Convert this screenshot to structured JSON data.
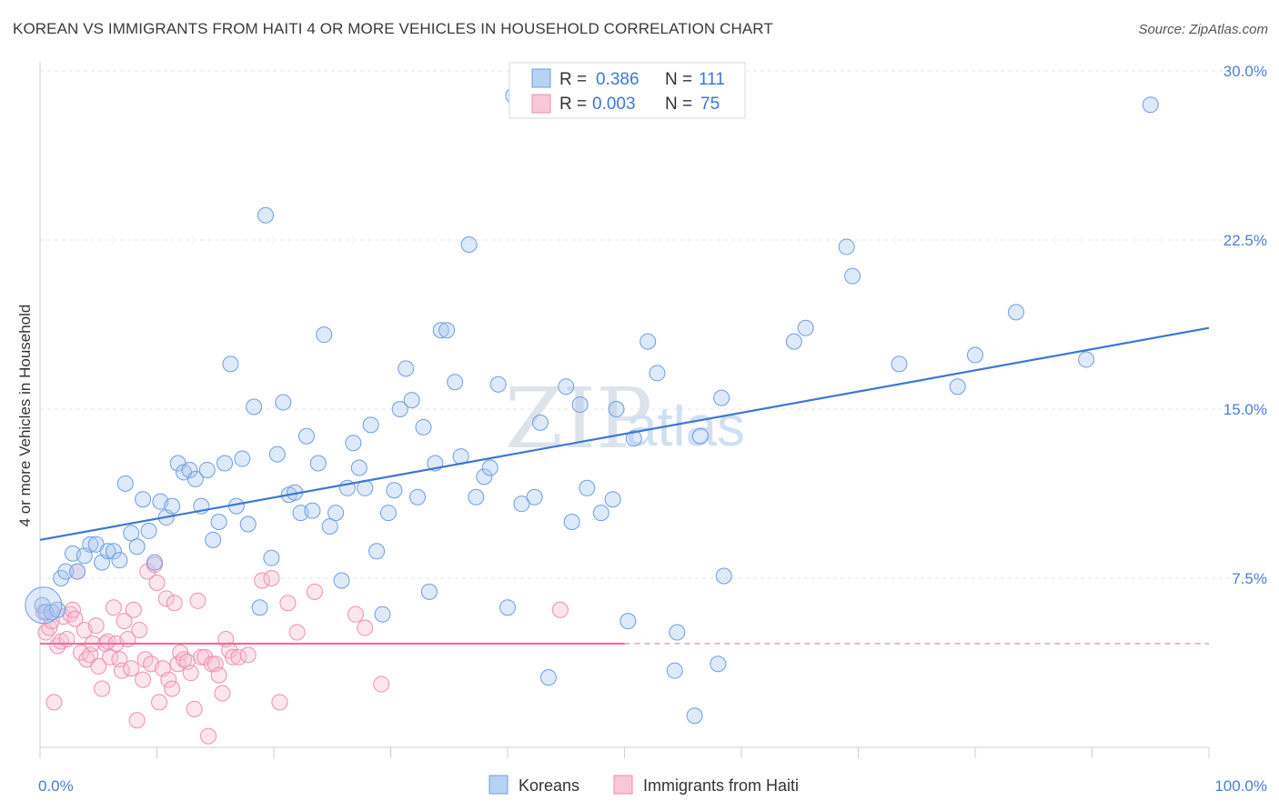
{
  "title": "KOREAN VS IMMIGRANTS FROM HAITI 4 OR MORE VEHICLES IN HOUSEHOLD CORRELATION CHART",
  "source": "Source: ZipAtlas.com",
  "watermark": {
    "zip": "ZIP",
    "atlas": "atlas"
  },
  "colors": {
    "koreans": "#4a86d8",
    "haiti": "#ec7aa0",
    "koreans_fill": "rgba(164,196,240,0.35)",
    "haiti_fill": "rgba(246,180,202,0.35)"
  },
  "legend": {
    "r_label": "R =",
    "n_label": "N =",
    "rows": [
      {
        "r": "0.386",
        "n": "111"
      },
      {
        "r": "0.003",
        "n": "75"
      }
    ]
  },
  "chart_data": {
    "type": "scatter",
    "title": "KOREAN VS IMMIGRANTS FROM HAITI 4 OR MORE VEHICLES IN HOUSEHOLD CORRELATION CHART",
    "xlabel": "",
    "ylabel": "4 or more Vehicles in Household",
    "xlim": [
      0,
      100
    ],
    "ylim": [
      0,
      30
    ],
    "x_tick_labels": [
      "0.0%",
      "100.0%"
    ],
    "y_ticks": [
      7.5,
      15.0,
      22.5,
      30.0
    ],
    "y_tick_labels": [
      "7.5%",
      "15.0%",
      "22.5%",
      "30.0%"
    ],
    "grid": true,
    "legend_position": "top-center",
    "series": [
      {
        "name": "Koreans",
        "trend": {
          "x": [
            0,
            100
          ],
          "y": [
            9.2,
            18.6
          ]
        },
        "points": [
          [
            0.2,
            6.3
          ],
          [
            0.5,
            6.0
          ],
          [
            1.0,
            6.0
          ],
          [
            1.5,
            6.1
          ],
          [
            1.8,
            7.5
          ],
          [
            2.2,
            7.8
          ],
          [
            2.8,
            8.6
          ],
          [
            3.2,
            7.8
          ],
          [
            3.8,
            8.5
          ],
          [
            4.3,
            9.0
          ],
          [
            4.8,
            9.0
          ],
          [
            5.3,
            8.2
          ],
          [
            5.8,
            8.7
          ],
          [
            6.3,
            8.7
          ],
          [
            6.8,
            8.3
          ],
          [
            7.3,
            11.7
          ],
          [
            7.8,
            9.5
          ],
          [
            8.3,
            8.9
          ],
          [
            8.8,
            11.0
          ],
          [
            9.3,
            9.6
          ],
          [
            9.8,
            8.2
          ],
          [
            10.3,
            10.9
          ],
          [
            10.8,
            10.2
          ],
          [
            11.3,
            10.7
          ],
          [
            11.8,
            12.6
          ],
          [
            12.3,
            12.2
          ],
          [
            12.8,
            12.3
          ],
          [
            13.3,
            11.9
          ],
          [
            13.8,
            10.7
          ],
          [
            14.3,
            12.3
          ],
          [
            14.8,
            9.2
          ],
          [
            15.3,
            10.0
          ],
          [
            15.8,
            12.6
          ],
          [
            16.3,
            17.0
          ],
          [
            16.8,
            10.7
          ],
          [
            17.3,
            12.8
          ],
          [
            17.8,
            9.9
          ],
          [
            18.3,
            15.1
          ],
          [
            18.8,
            6.2
          ],
          [
            19.3,
            23.6
          ],
          [
            19.8,
            8.4
          ],
          [
            20.3,
            13.0
          ],
          [
            20.8,
            15.3
          ],
          [
            21.3,
            11.2
          ],
          [
            21.8,
            11.3
          ],
          [
            22.3,
            10.4
          ],
          [
            22.8,
            13.8
          ],
          [
            23.3,
            10.5
          ],
          [
            23.8,
            12.6
          ],
          [
            24.3,
            18.3
          ],
          [
            24.8,
            9.8
          ],
          [
            25.3,
            10.4
          ],
          [
            25.8,
            7.4
          ],
          [
            26.3,
            11.5
          ],
          [
            26.8,
            13.5
          ],
          [
            27.3,
            12.4
          ],
          [
            27.8,
            11.5
          ],
          [
            28.3,
            14.3
          ],
          [
            28.8,
            8.7
          ],
          [
            29.3,
            5.9
          ],
          [
            29.8,
            10.4
          ],
          [
            30.3,
            11.4
          ],
          [
            30.8,
            15.0
          ],
          [
            31.3,
            16.8
          ],
          [
            31.8,
            15.4
          ],
          [
            32.3,
            11.1
          ],
          [
            32.8,
            14.2
          ],
          [
            33.3,
            6.9
          ],
          [
            33.8,
            12.6
          ],
          [
            34.3,
            18.5
          ],
          [
            34.8,
            18.5
          ],
          [
            35.5,
            16.2
          ],
          [
            36.0,
            12.9
          ],
          [
            36.7,
            22.3
          ],
          [
            37.3,
            11.1
          ],
          [
            38.0,
            12.0
          ],
          [
            38.5,
            12.4
          ],
          [
            39.2,
            16.1
          ],
          [
            40.0,
            6.2
          ],
          [
            40.5,
            28.9
          ],
          [
            41.2,
            10.8
          ],
          [
            42.3,
            11.1
          ],
          [
            42.8,
            14.4
          ],
          [
            43.5,
            3.1
          ],
          [
            45.0,
            16.0
          ],
          [
            45.5,
            10.0
          ],
          [
            46.2,
            15.2
          ],
          [
            46.8,
            11.5
          ],
          [
            48.0,
            10.4
          ],
          [
            49.0,
            11.0
          ],
          [
            49.3,
            15.0
          ],
          [
            50.3,
            5.6
          ],
          [
            50.8,
            13.7
          ],
          [
            52.0,
            18.0
          ],
          [
            52.8,
            16.6
          ],
          [
            54.3,
            3.4
          ],
          [
            54.5,
            5.1
          ],
          [
            56.0,
            1.4
          ],
          [
            56.5,
            13.8
          ],
          [
            58.0,
            3.7
          ],
          [
            58.3,
            15.5
          ],
          [
            58.5,
            7.6
          ],
          [
            64.5,
            18.0
          ],
          [
            65.5,
            18.6
          ],
          [
            69.0,
            22.2
          ],
          [
            69.5,
            20.9
          ],
          [
            73.5,
            17.0
          ],
          [
            78.5,
            16.0
          ],
          [
            80.0,
            17.4
          ],
          [
            83.5,
            19.3
          ],
          [
            89.5,
            17.2
          ],
          [
            95.0,
            28.5
          ]
        ]
      },
      {
        "name": "Immigrants from Haiti",
        "trend": {
          "x": [
            0,
            50,
            100
          ],
          "y": [
            4.6,
            4.6,
            4.6
          ]
        },
        "points": [
          [
            0.3,
            6.0
          ],
          [
            0.5,
            5.1
          ],
          [
            0.8,
            5.3
          ],
          [
            1.0,
            5.6
          ],
          [
            1.2,
            2.0
          ],
          [
            1.5,
            4.5
          ],
          [
            1.8,
            4.7
          ],
          [
            2.0,
            5.8
          ],
          [
            2.3,
            4.8
          ],
          [
            2.6,
            5.9
          ],
          [
            2.8,
            6.1
          ],
          [
            3.0,
            5.7
          ],
          [
            3.2,
            7.8
          ],
          [
            3.5,
            4.2
          ],
          [
            3.8,
            5.2
          ],
          [
            4.0,
            3.9
          ],
          [
            4.3,
            4.1
          ],
          [
            4.5,
            4.6
          ],
          [
            4.8,
            5.4
          ],
          [
            5.0,
            3.6
          ],
          [
            5.3,
            2.6
          ],
          [
            5.6,
            4.6
          ],
          [
            5.8,
            4.7
          ],
          [
            6.0,
            4.0
          ],
          [
            6.3,
            6.2
          ],
          [
            6.5,
            4.6
          ],
          [
            6.8,
            3.9
          ],
          [
            7.0,
            3.4
          ],
          [
            7.2,
            5.6
          ],
          [
            7.5,
            4.8
          ],
          [
            7.8,
            3.5
          ],
          [
            8.0,
            6.1
          ],
          [
            8.3,
            1.2
          ],
          [
            8.5,
            5.2
          ],
          [
            8.8,
            3.0
          ],
          [
            9.0,
            3.9
          ],
          [
            9.2,
            7.8
          ],
          [
            9.5,
            3.7
          ],
          [
            9.8,
            8.1
          ],
          [
            10.0,
            7.3
          ],
          [
            10.2,
            2.0
          ],
          [
            10.5,
            3.5
          ],
          [
            10.8,
            6.6
          ],
          [
            11.0,
            3.0
          ],
          [
            11.3,
            2.6
          ],
          [
            11.5,
            6.4
          ],
          [
            11.8,
            3.7
          ],
          [
            12.0,
            4.2
          ],
          [
            12.3,
            3.9
          ],
          [
            12.6,
            3.8
          ],
          [
            12.9,
            3.3
          ],
          [
            13.2,
            1.7
          ],
          [
            13.5,
            6.5
          ],
          [
            13.8,
            4.0
          ],
          [
            14.1,
            4.0
          ],
          [
            14.4,
            0.5
          ],
          [
            14.7,
            3.7
          ],
          [
            15.0,
            3.7
          ],
          [
            15.3,
            3.2
          ],
          [
            15.6,
            2.4
          ],
          [
            15.9,
            4.8
          ],
          [
            16.2,
            4.3
          ],
          [
            16.5,
            4.0
          ],
          [
            17.0,
            4.0
          ],
          [
            17.8,
            4.1
          ],
          [
            19.0,
            7.4
          ],
          [
            19.8,
            7.5
          ],
          [
            20.5,
            2.0
          ],
          [
            21.2,
            6.4
          ],
          [
            22.0,
            5.1
          ],
          [
            23.5,
            6.9
          ],
          [
            27.0,
            5.9
          ],
          [
            27.8,
            5.3
          ],
          [
            29.2,
            2.8
          ],
          [
            44.5,
            6.1
          ]
        ]
      }
    ]
  },
  "bottom_legend": [
    "Koreans",
    "Immigrants from Haiti"
  ]
}
